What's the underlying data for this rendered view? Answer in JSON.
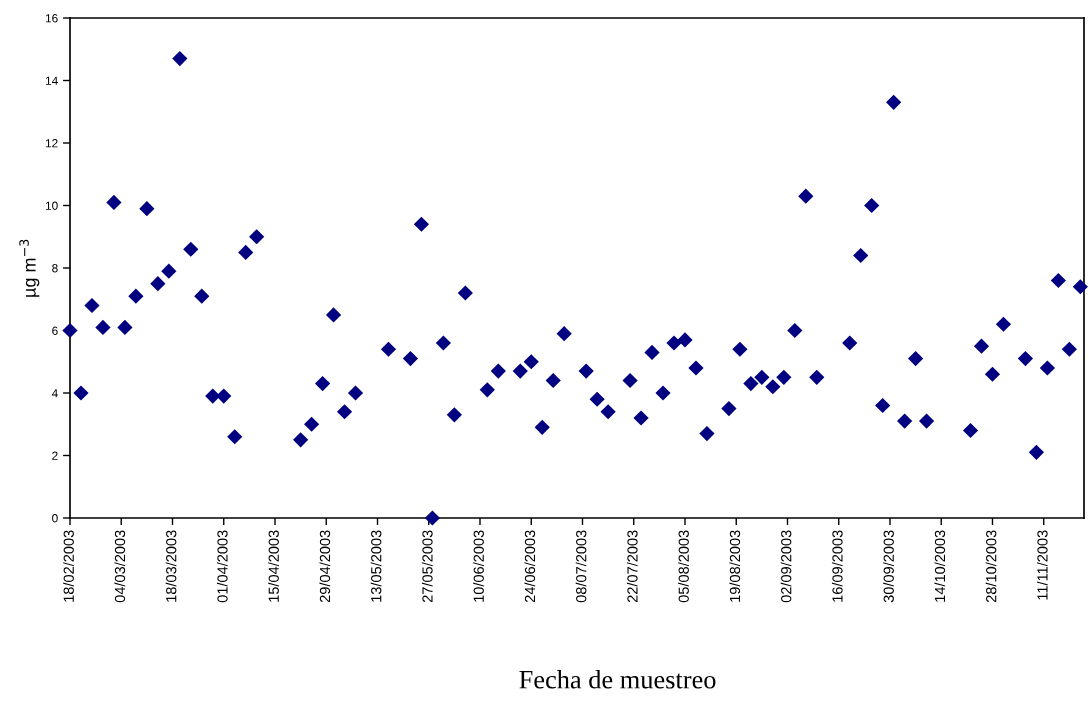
{
  "chart_data": {
    "type": "scatter",
    "xlabel": "Fecha de muestreo",
    "ylabel": "µg m$^{−3}$",
    "x": [
      "2003-02-18",
      "2003-02-21",
      "2003-02-24",
      "2003-02-27",
      "2003-03-02",
      "2003-03-05",
      "2003-03-08",
      "2003-03-11",
      "2003-03-14",
      "2003-03-17",
      "2003-03-20",
      "2003-03-23",
      "2003-03-26",
      "2003-03-29",
      "2003-04-01",
      "2003-04-04",
      "2003-04-07",
      "2003-04-10",
      "2003-04-22",
      "2003-04-25",
      "2003-04-28",
      "2003-05-01",
      "2003-05-04",
      "2003-05-07",
      "2003-05-16",
      "2003-05-22",
      "2003-05-25",
      "2003-05-28",
      "2003-05-31",
      "2003-06-03",
      "2003-06-06",
      "2003-06-12",
      "2003-06-15",
      "2003-06-21",
      "2003-06-24",
      "2003-06-27",
      "2003-06-30",
      "2003-07-03",
      "2003-07-09",
      "2003-07-12",
      "2003-07-15",
      "2003-07-21",
      "2003-07-24",
      "2003-07-27",
      "2003-07-30",
      "2003-08-02",
      "2003-08-05",
      "2003-08-08",
      "2003-08-11",
      "2003-08-17",
      "2003-08-20",
      "2003-08-23",
      "2003-08-26",
      "2003-08-29",
      "2003-09-01",
      "2003-09-04",
      "2003-09-07",
      "2003-09-10",
      "2003-09-19",
      "2003-09-22",
      "2003-09-25",
      "2003-09-28",
      "2003-10-01",
      "2003-10-04",
      "2003-10-07",
      "2003-10-10",
      "2003-10-22",
      "2003-10-25",
      "2003-10-28",
      "2003-10-31",
      "2003-11-06",
      "2003-11-09",
      "2003-11-12",
      "2003-11-15",
      "2003-11-18",
      "2003-11-21"
    ],
    "series": [
      {
        "color": "#000080",
        "values": [
          6.0,
          4.0,
          6.8,
          6.1,
          10.1,
          6.1,
          7.1,
          9.9,
          7.5,
          7.9,
          14.7,
          8.6,
          7.1,
          3.9,
          3.9,
          2.6,
          8.5,
          9.0,
          2.5,
          3.0,
          4.3,
          6.5,
          3.4,
          4.0,
          5.4,
          5.1,
          9.4,
          0.0,
          5.6,
          3.3,
          7.2,
          4.1,
          4.7,
          4.7,
          5.0,
          2.9,
          4.4,
          5.9,
          4.7,
          3.8,
          3.4,
          4.4,
          3.2,
          5.3,
          4.0,
          5.6,
          5.7,
          4.8,
          2.7,
          3.5,
          5.4,
          4.3,
          4.5,
          4.2,
          4.5,
          6.0,
          10.3,
          4.5,
          5.6,
          8.4,
          10.0,
          3.6,
          13.3,
          3.1,
          5.1,
          3.1,
          2.8,
          5.5,
          4.6,
          6.2,
          5.1,
          2.1,
          4.8,
          7.6,
          5.4,
          7.4
        ]
      }
    ],
    "marker": "diamond",
    "xlim": [
      "2003-02-18",
      "2003-11-22"
    ],
    "xticks": [
      {
        "value": "2003-02-18",
        "label": "18/02/2003"
      },
      {
        "value": "2003-03-04",
        "label": "04/03/2003"
      },
      {
        "value": "2003-03-18",
        "label": "18/03/2003"
      },
      {
        "value": "2003-04-01",
        "label": "01/04/2003"
      },
      {
        "value": "2003-04-15",
        "label": "15/04/2003"
      },
      {
        "value": "2003-04-29",
        "label": "29/04/2003"
      },
      {
        "value": "2003-05-13",
        "label": "13/05/2003"
      },
      {
        "value": "2003-05-27",
        "label": "27/05/2003"
      },
      {
        "value": "2003-06-10",
        "label": "10/06/2003"
      },
      {
        "value": "2003-06-24",
        "label": "24/06/2003"
      },
      {
        "value": "2003-07-08",
        "label": "08/07/2003"
      },
      {
        "value": "2003-07-22",
        "label": "22/07/2003"
      },
      {
        "value": "2003-08-05",
        "label": "05/08/2003"
      },
      {
        "value": "2003-08-19",
        "label": "19/08/2003"
      },
      {
        "value": "2003-09-02",
        "label": "02/09/2003"
      },
      {
        "value": "2003-09-16",
        "label": "16/09/2003"
      },
      {
        "value": "2003-09-30",
        "label": "30/09/2003"
      },
      {
        "value": "2003-10-14",
        "label": "14/10/2003"
      },
      {
        "value": "2003-10-28",
        "label": "28/10/2003"
      },
      {
        "value": "2003-11-11",
        "label": "11/11/2003"
      }
    ],
    "ylim": [
      0,
      16
    ],
    "yticks": [
      0,
      2,
      4,
      6,
      8,
      10,
      12,
      14,
      16
    ],
    "grid": false
  }
}
